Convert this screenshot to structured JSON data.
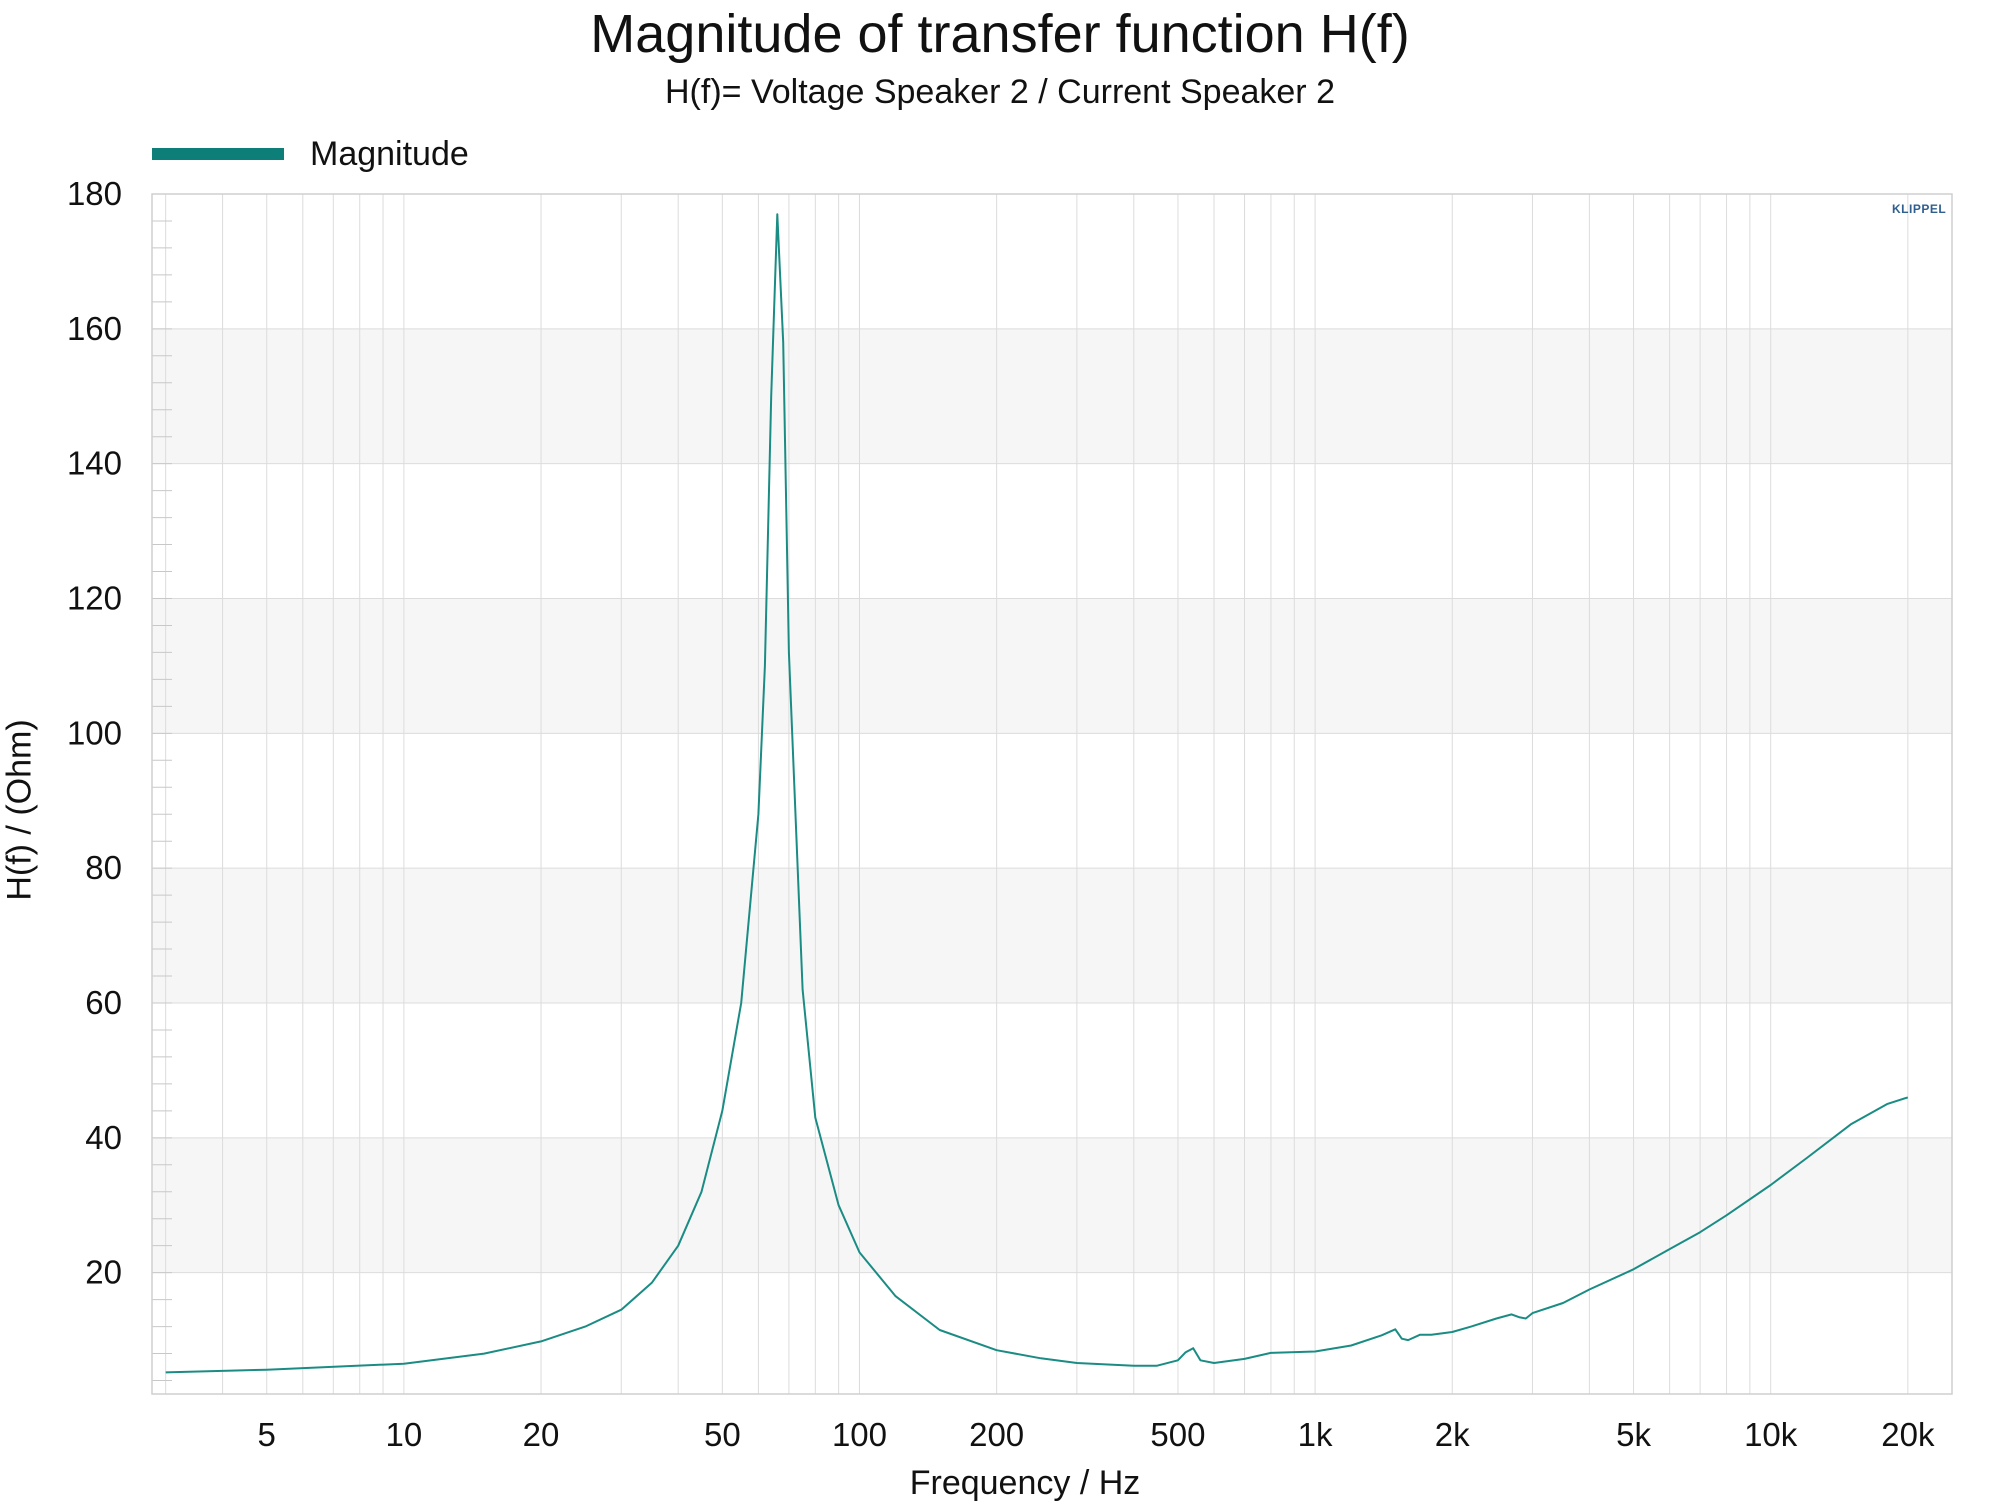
{
  "chart_data": {
    "type": "line",
    "title": "Magnitude of transfer function H(f)",
    "subtitle": "H(f)= Voltage Speaker 2 / Current Speaker 2",
    "xlabel": "Frequency / Hz",
    "ylabel": "H(f) / (Ohm)",
    "xscale": "log",
    "xlim": [
      2.8,
      25000
    ],
    "ylim": [
      2,
      180
    ],
    "xticks": [
      5,
      10,
      20,
      50,
      100,
      200,
      500,
      1000,
      2000,
      5000,
      10000,
      20000
    ],
    "xtick_labels": [
      "5",
      "10",
      "20",
      "50",
      "100",
      "200",
      "500",
      "1k",
      "2k",
      "5k",
      "10k",
      "20k"
    ],
    "yticks": [
      20,
      40,
      60,
      80,
      100,
      120,
      140,
      160,
      180
    ],
    "ytick_labels": [
      "20",
      "40",
      "60",
      "80",
      "100",
      "120",
      "140",
      "160",
      "180"
    ],
    "grid": true,
    "legend_position": "top-left",
    "logo": "KLIPPEL",
    "colors": {
      "line": "#1a8c84",
      "legend": "#0e7f78",
      "band": "#f6f6f6",
      "grid": "#dcdcdc"
    },
    "series": [
      {
        "name": "Magnitude",
        "x": [
          3,
          5,
          10,
          15,
          20,
          25,
          30,
          35,
          40,
          45,
          50,
          55,
          60,
          62,
          64,
          66,
          68,
          70,
          75,
          80,
          90,
          100,
          120,
          150,
          200,
          250,
          300,
          400,
          450,
          500,
          520,
          540,
          560,
          600,
          700,
          800,
          1000,
          1200,
          1400,
          1500,
          1550,
          1600,
          1700,
          1800,
          2000,
          2200,
          2500,
          2700,
          2800,
          2900,
          3000,
          3500,
          4000,
          5000,
          6000,
          7000,
          8000,
          10000,
          12000,
          15000,
          18000,
          20000
        ],
        "y": [
          5.2,
          5.6,
          6.5,
          8,
          9.8,
          12,
          14.5,
          18.5,
          24,
          32,
          44,
          60,
          88,
          110,
          150,
          177,
          158,
          112,
          62,
          43,
          30,
          23,
          16.5,
          11.5,
          8.5,
          7.3,
          6.6,
          6.2,
          6.2,
          7,
          8.2,
          8.8,
          7,
          6.6,
          7.2,
          8.1,
          8.3,
          9.2,
          10.7,
          11.6,
          10.2,
          10,
          10.8,
          10.8,
          11.2,
          12,
          13.2,
          13.8,
          13.4,
          13.2,
          14,
          15.5,
          17.5,
          20.5,
          23.5,
          26,
          28.5,
          33,
          37,
          42,
          45,
          46
        ]
      }
    ]
  }
}
